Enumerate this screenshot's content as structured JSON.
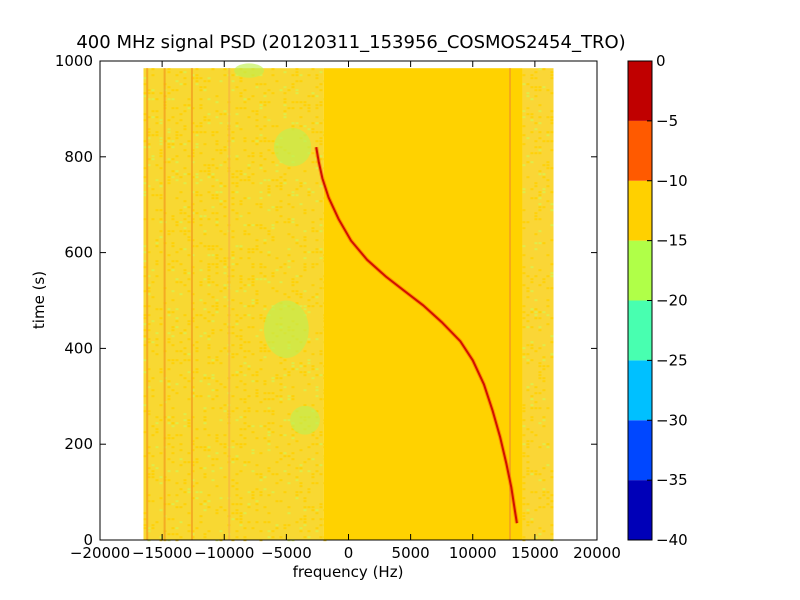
{
  "chart_data": {
    "type": "heatmap",
    "title": "400 MHz signal PSD (20120311_153956_COSMOS2454_TRO)",
    "xlabel": "frequency (Hz)",
    "ylabel": "time (s)",
    "xlim": [
      -20000,
      20000
    ],
    "ylim": [
      0,
      1000
    ],
    "x_ticks": [
      -20000,
      -15000,
      -10000,
      -5000,
      0,
      5000,
      10000,
      15000,
      20000
    ],
    "x_tick_labels": [
      "−20000",
      "−15000",
      "−10000",
      "−5000",
      "0",
      "5000",
      "10000",
      "15000",
      "20000"
    ],
    "y_ticks": [
      0,
      200,
      400,
      600,
      800,
      1000
    ],
    "y_tick_labels": [
      "0",
      "200",
      "400",
      "600",
      "800",
      "1000"
    ],
    "data_extent": {
      "x": [
        -16500,
        16500
      ],
      "y": [
        0,
        985
      ]
    },
    "colorbar": {
      "range": [
        -40,
        0
      ],
      "levels": [
        -40,
        -35,
        -30,
        -25,
        -20,
        -15,
        -10,
        -5,
        0
      ],
      "tick_labels": [
        "−40",
        "−35",
        "−30",
        "−25",
        "−20",
        "−15",
        "−10",
        "−5",
        "0"
      ],
      "colors": [
        "#0000b8",
        "#0047ff",
        "#00c0ff",
        "#48ffb0",
        "#b0ff48",
        "#ffd000",
        "#ff5a00",
        "#c00000"
      ]
    },
    "background_regions": [
      {
        "x": [
          -16500,
          -2000
        ],
        "y": [
          0,
          985
        ],
        "level": -12.5,
        "color": "#f8d832",
        "texture": "mixed -15 to -10 dB"
      },
      {
        "x": [
          -2000,
          14000
        ],
        "y": [
          0,
          985
        ],
        "level": -12.5,
        "color": "#ffd200"
      },
      {
        "x": [
          14000,
          16500
        ],
        "y": [
          0,
          985
        ],
        "level": -12.5,
        "color": "#fad636",
        "texture": "mixed -15 to -10 dB"
      }
    ],
    "green_patches": [
      {
        "x": -5000,
        "y": 440,
        "rx": 1800,
        "ry": 60
      },
      {
        "x": -4500,
        "y": 820,
        "rx": 1500,
        "ry": 40
      },
      {
        "x": -8000,
        "y": 980,
        "rx": 1200,
        "ry": 15
      },
      {
        "x": -3500,
        "y": 250,
        "rx": 1200,
        "ry": 30
      }
    ],
    "vertical_lines": [
      {
        "x": -16200,
        "level": -7.5,
        "color": "#f4a020"
      },
      {
        "x": -14800,
        "level": -7.5,
        "color": "#f4a020"
      },
      {
        "x": -12600,
        "level": -7.5,
        "color": "#f4a020"
      },
      {
        "x": -9600,
        "level": -7.5,
        "color": "#f8b840"
      },
      {
        "x": 13000,
        "level": -7.5,
        "color": "#f4a020"
      }
    ],
    "series": [
      {
        "level": -2.5,
        "color": "#d01000",
        "points": [
          [
            -2600,
            820
          ],
          [
            -2400,
            790
          ],
          [
            -2100,
            755
          ],
          [
            -1600,
            715
          ],
          [
            -800,
            670
          ],
          [
            200,
            625
          ],
          [
            1500,
            585
          ],
          [
            3000,
            550
          ],
          [
            4500,
            520
          ],
          [
            6000,
            490
          ],
          [
            7500,
            455
          ],
          [
            9000,
            415
          ],
          [
            10000,
            375
          ],
          [
            10900,
            325
          ],
          [
            11600,
            270
          ],
          [
            12200,
            215
          ],
          [
            12700,
            160
          ],
          [
            13100,
            110
          ],
          [
            13400,
            60
          ],
          [
            13550,
            35
          ]
        ]
      }
    ]
  }
}
